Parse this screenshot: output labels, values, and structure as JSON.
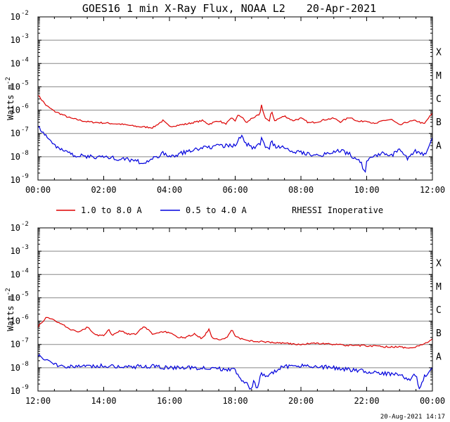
{
  "title": "GOES16 1 min X-Ray Flux, NOAA L2",
  "date": "20-Apr-2021",
  "footer_timestamp": "20-Aug-2021 14:17",
  "ylabel": "Watts m",
  "ylabel_exp": "-2",
  "y_tick_exponents": [
    "-2",
    "-3",
    "-4",
    "-5",
    "-6",
    "-7",
    "-8",
    "-9"
  ],
  "flare_classes": [
    "X",
    "M",
    "C",
    "B",
    "A"
  ],
  "legend": {
    "series1": "1.0 to 8.0 A",
    "series2": "0.5 to 4.0 A",
    "note": "RHESSI Inoperative"
  },
  "colors": {
    "long": "#dd0000",
    "short": "#0000dd",
    "grid": "#888888"
  },
  "chart_data": [
    {
      "type": "line",
      "title": "GOES16 1 min X-Ray Flux, NOAA L2 20-Apr-2021 (00:00-12:00)",
      "ylabel": "Watts m^-2",
      "yscale": "log",
      "ylim_exp": [
        -9,
        -2
      ],
      "xlim_hours": [
        0,
        12
      ],
      "x_tick_labels": [
        "00:00",
        "02:00",
        "04:00",
        "06:00",
        "08:00",
        "10:00",
        "12:00"
      ],
      "series": [
        {
          "name": "1.0 to 8.0 A",
          "color": "#dd0000",
          "x": [
            0,
            0.25,
            0.5,
            1,
            1.5,
            2,
            2.5,
            3,
            3.5,
            3.8,
            4,
            4.5,
            5,
            5.2,
            5.5,
            5.7,
            5.9,
            6,
            6.1,
            6.2,
            6.35,
            6.5,
            6.75,
            6.8,
            6.9,
            7.05,
            7.1,
            7.2,
            7.5,
            7.75,
            8,
            8.25,
            8.5,
            8.75,
            9,
            9.2,
            9.35,
            9.5,
            9.75,
            10,
            10.25,
            10.5,
            10.75,
            11,
            11.25,
            11.5,
            11.75,
            11.9,
            12
          ],
          "log_flux": [
            -5.35,
            -5.8,
            -6.05,
            -6.35,
            -6.5,
            -6.55,
            -6.6,
            -6.7,
            -6.75,
            -6.45,
            -6.7,
            -6.6,
            -6.45,
            -6.6,
            -6.45,
            -6.6,
            -6.35,
            -6.45,
            -6.2,
            -6.3,
            -6.55,
            -6.35,
            -6.2,
            -5.8,
            -6.3,
            -6.5,
            -6.0,
            -6.45,
            -6.25,
            -6.45,
            -6.35,
            -6.55,
            -6.5,
            -6.4,
            -6.35,
            -6.5,
            -6.4,
            -6.3,
            -6.5,
            -6.45,
            -6.6,
            -6.45,
            -6.4,
            -6.65,
            -6.5,
            -6.45,
            -6.6,
            -6.3,
            -6.15
          ]
        },
        {
          "name": "0.5 to 4.0 A",
          "color": "#0000dd",
          "x": [
            0,
            0.25,
            0.5,
            1,
            1.5,
            2,
            2.5,
            3,
            3.2,
            3.5,
            3.8,
            4,
            4.5,
            5,
            5.5,
            6,
            6.1,
            6.2,
            6.35,
            6.5,
            6.75,
            6.8,
            6.9,
            7.05,
            7.1,
            7.2,
            7.5,
            7.75,
            8,
            8.5,
            9,
            9.25,
            9.5,
            9.6,
            9.75,
            9.9,
            9.95,
            10,
            10.25,
            10.5,
            10.75,
            11,
            11.25,
            11.5,
            11.75,
            11.9,
            12
          ],
          "log_flux": [
            -6.65,
            -7.15,
            -7.5,
            -7.9,
            -8.0,
            -8.0,
            -8.1,
            -8.15,
            -8.3,
            -8.1,
            -7.85,
            -8.0,
            -7.8,
            -7.6,
            -7.55,
            -7.5,
            -7.3,
            -7.1,
            -7.45,
            -7.6,
            -7.5,
            -7.2,
            -7.55,
            -7.6,
            -7.3,
            -7.55,
            -7.55,
            -7.75,
            -7.8,
            -7.95,
            -7.8,
            -7.75,
            -7.9,
            -8.1,
            -8.05,
            -8.5,
            -8.75,
            -8.1,
            -7.95,
            -7.85,
            -7.95,
            -7.7,
            -8.1,
            -7.75,
            -7.9,
            -7.6,
            -7.25
          ]
        }
      ]
    },
    {
      "type": "line",
      "title": "GOES16 1 min X-Ray Flux, NOAA L2 20-Apr-2021 (12:00-24:00)",
      "ylabel": "Watts m^-2",
      "yscale": "log",
      "ylim_exp": [
        -9,
        -2
      ],
      "xlim_hours": [
        12,
        24
      ],
      "x_tick_labels": [
        "12:00",
        "14:00",
        "16:00",
        "18:00",
        "20:00",
        "22:00",
        "00:00"
      ],
      "series": [
        {
          "name": "1.0 to 8.0 A",
          "color": "#dd0000",
          "x": [
            12,
            12.25,
            12.5,
            12.75,
            13,
            13.25,
            13.5,
            13.75,
            14,
            14.15,
            14.25,
            14.5,
            14.75,
            15,
            15.2,
            15.3,
            15.5,
            15.75,
            16,
            16.25,
            16.5,
            16.75,
            17,
            17.2,
            17.3,
            17.5,
            17.75,
            17.9,
            18,
            18.25,
            18.5,
            19,
            19.5,
            20,
            20.5,
            21,
            21.5,
            22,
            22.5,
            23,
            23.25,
            23.5,
            23.75,
            24
          ],
          "log_flux": [
            -6.25,
            -5.85,
            -5.95,
            -6.15,
            -6.35,
            -6.5,
            -6.25,
            -6.6,
            -6.6,
            -6.35,
            -6.6,
            -6.4,
            -6.55,
            -6.55,
            -6.25,
            -6.3,
            -6.6,
            -6.45,
            -6.5,
            -6.7,
            -6.7,
            -6.55,
            -6.75,
            -6.35,
            -6.75,
            -6.8,
            -6.7,
            -6.35,
            -6.65,
            -6.8,
            -6.85,
            -6.9,
            -6.95,
            -7.0,
            -6.95,
            -7.0,
            -7.05,
            -7.05,
            -7.1,
            -7.1,
            -7.15,
            -7.1,
            -7.0,
            -6.75
          ]
        },
        {
          "name": "0.5 to 4.0 A",
          "color": "#0000dd",
          "x": [
            12,
            12.25,
            12.5,
            12.75,
            13,
            13.25,
            13.5,
            13.75,
            14,
            14.5,
            15,
            15.5,
            16,
            16.5,
            17,
            17.5,
            18,
            18.2,
            18.35,
            18.5,
            18.55,
            18.65,
            18.8,
            19,
            19.25,
            19.5,
            20,
            20.5,
            21,
            21.5,
            22,
            22.5,
            23,
            23.25,
            23.5,
            23.6,
            23.75,
            24
          ],
          "log_flux": [
            -7.45,
            -7.65,
            -7.85,
            -7.9,
            -7.95,
            -7.95,
            -7.9,
            -7.95,
            -7.9,
            -7.95,
            -7.95,
            -7.95,
            -8.0,
            -8.0,
            -8.0,
            -8.05,
            -8.1,
            -8.5,
            -8.7,
            -9.0,
            -8.5,
            -8.95,
            -8.25,
            -8.4,
            -8.1,
            -7.95,
            -7.9,
            -7.95,
            -8.0,
            -8.1,
            -8.15,
            -8.25,
            -8.3,
            -8.55,
            -8.3,
            -8.85,
            -8.4,
            -8.0
          ]
        }
      ]
    }
  ]
}
